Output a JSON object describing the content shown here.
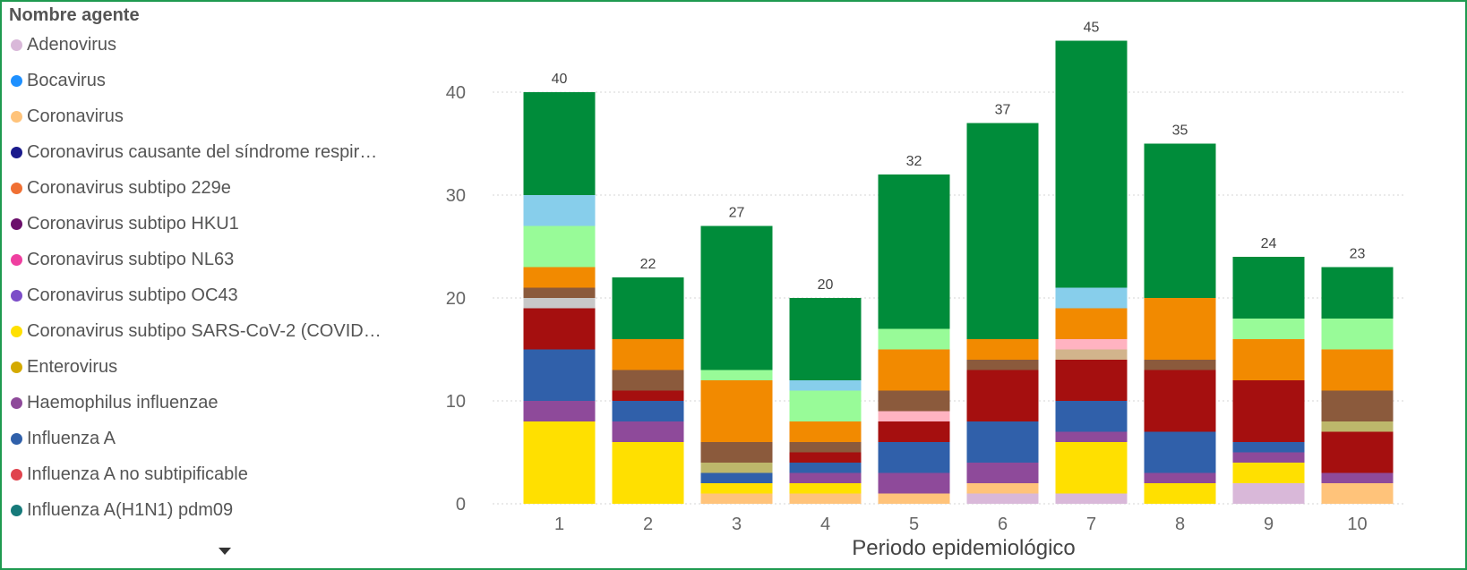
{
  "legend": {
    "title": "Nombre agente",
    "items": [
      {
        "name": "Adenovirus",
        "color": "#d9b8d9"
      },
      {
        "name": "Bocavirus",
        "color": "#1e90ff"
      },
      {
        "name": "Coronavirus",
        "color": "#ffc37a"
      },
      {
        "name": "Coronavirus causante del síndrome respir…",
        "color": "#1a1a8c"
      },
      {
        "name": "Coronavirus subtipo 229e",
        "color": "#f07033"
      },
      {
        "name": "Coronavirus subtipo HKU1",
        "color": "#6b0f6b"
      },
      {
        "name": "Coronavirus subtipo NL63",
        "color": "#ef3fa0"
      },
      {
        "name": "Coronavirus subtipo OC43",
        "color": "#7c4dc8"
      },
      {
        "name": "Coronavirus subtipo SARS-CoV-2 (COVID…",
        "color": "#ffe000"
      },
      {
        "name": "Enterovirus",
        "color": "#d4aa00"
      },
      {
        "name": "Haemophilus influenzae",
        "color": "#8e4a9a"
      },
      {
        "name": "Influenza A",
        "color": "#3060aa"
      },
      {
        "name": "Influenza A no subtipificable",
        "color": "#e0444e"
      },
      {
        "name": "Influenza A(H1N1) pdm09",
        "color": "#167a7a"
      }
    ]
  },
  "chart_data": {
    "type": "bar",
    "stacked": true,
    "categories": [
      "1",
      "2",
      "3",
      "4",
      "5",
      "6",
      "7",
      "8",
      "9",
      "10"
    ],
    "xlabel": "Periodo epidemiológico",
    "ylabel": "",
    "ylim": [
      0,
      47
    ],
    "yticks": [
      0,
      10,
      20,
      30,
      40
    ],
    "grid": true,
    "totals": [
      40,
      22,
      27,
      20,
      32,
      37,
      45,
      35,
      24,
      23
    ],
    "series": [
      {
        "color": "#d9b8d9",
        "values": [
          0,
          0,
          0,
          0,
          0,
          1,
          1,
          0,
          2,
          0
        ]
      },
      {
        "color": "#ffc37a",
        "values": [
          0,
          0,
          1,
          1,
          1,
          1,
          0,
          0,
          0,
          2
        ]
      },
      {
        "color": "#ffe000",
        "values": [
          8,
          6,
          1,
          1,
          0,
          0,
          5,
          2,
          2,
          0
        ]
      },
      {
        "color": "#8e4a9a",
        "values": [
          2,
          2,
          0,
          1,
          2,
          2,
          1,
          1,
          1,
          1
        ]
      },
      {
        "color": "#3060aa",
        "values": [
          5,
          2,
          1,
          1,
          3,
          4,
          3,
          4,
          1,
          0
        ]
      },
      {
        "color": "#a50f0f",
        "values": [
          4,
          1,
          0,
          1,
          2,
          5,
          4,
          6,
          6,
          4
        ]
      },
      {
        "color": "#bdb76b",
        "values": [
          0,
          0,
          1,
          0,
          0,
          0,
          0,
          0,
          0,
          1
        ]
      },
      {
        "color": "#c8c8c8",
        "values": [
          1,
          0,
          0,
          0,
          0,
          0,
          0,
          0,
          0,
          0
        ]
      },
      {
        "color": "#d2b48c",
        "values": [
          0,
          0,
          0,
          0,
          0,
          0,
          1,
          0,
          0,
          0
        ]
      },
      {
        "color": "#ffb3c1",
        "values": [
          0,
          0,
          0,
          0,
          1,
          0,
          1,
          0,
          0,
          0
        ]
      },
      {
        "color": "#8b5a3c",
        "values": [
          1,
          2,
          2,
          1,
          2,
          1,
          0,
          1,
          0,
          3
        ]
      },
      {
        "color": "#f28a00",
        "values": [
          2,
          3,
          6,
          2,
          4,
          2,
          3,
          6,
          4,
          4
        ]
      },
      {
        "color": "#98fb98",
        "values": [
          4,
          0,
          1,
          3,
          2,
          0,
          0,
          0,
          2,
          3
        ]
      },
      {
        "color": "#87ceeb",
        "values": [
          3,
          0,
          0,
          1,
          0,
          0,
          2,
          0,
          0,
          0
        ]
      },
      {
        "color": "#008c3a",
        "values": [
          10,
          6,
          14,
          8,
          15,
          21,
          24,
          15,
          6,
          5
        ]
      }
    ]
  }
}
